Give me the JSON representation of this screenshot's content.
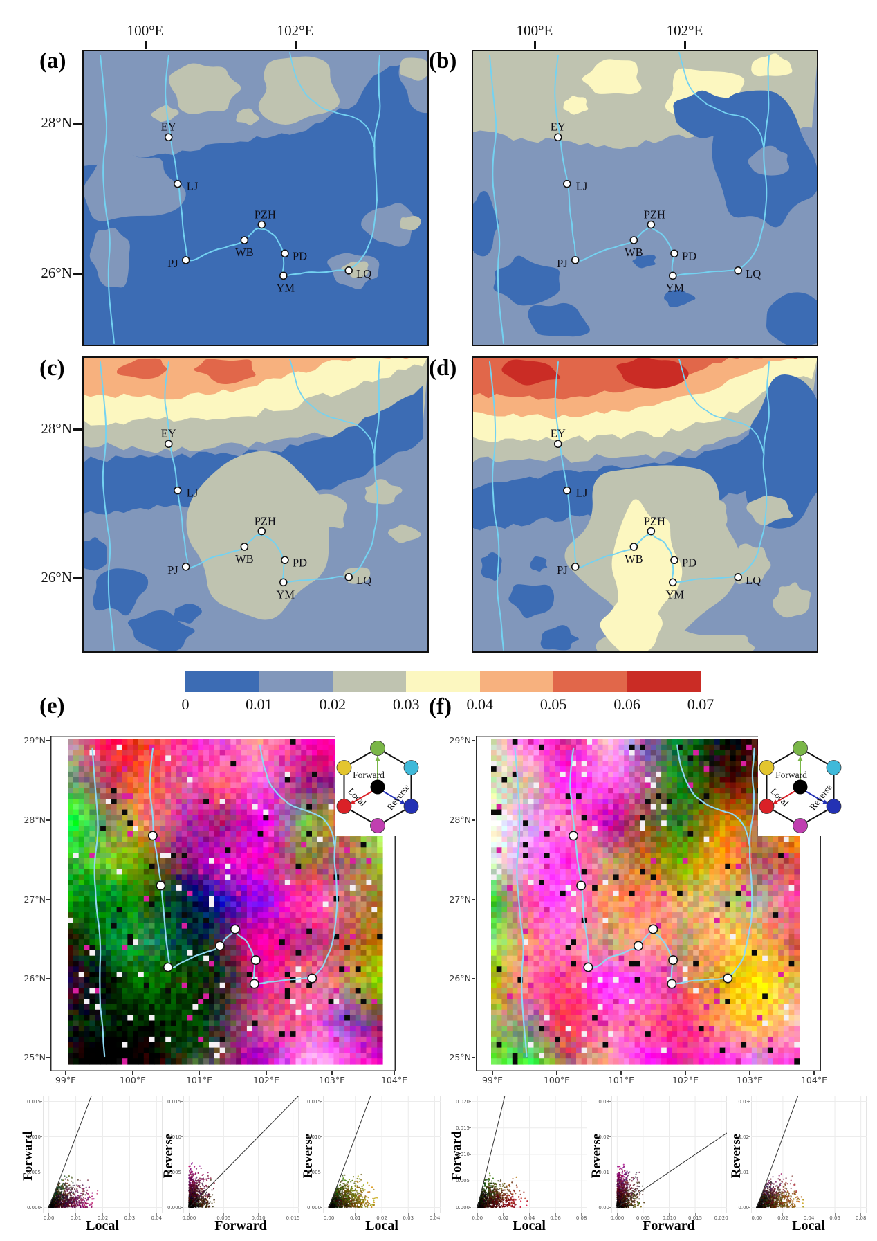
{
  "panels": {
    "a": {
      "label": "(a)",
      "top_ticks": [
        "100°E",
        "102°E"
      ],
      "lat_ticks": [
        "28°N",
        "26°N"
      ]
    },
    "b": {
      "label": "(b)",
      "top_ticks": [
        "100°E",
        "102°E"
      ]
    },
    "c": {
      "label": "(c)",
      "lat_ticks": [
        "28°N",
        "26°N"
      ]
    },
    "d": {
      "label": "(d)"
    },
    "e": {
      "label": "(e)",
      "lon_ticks": [
        "99°E",
        "100°E",
        "101°E",
        "102°E",
        "103°E",
        "104°E"
      ],
      "lat_ticks": [
        "29°N",
        "28°N",
        "27°N",
        "26°N",
        "25°N"
      ]
    },
    "f": {
      "label": "(f)",
      "lon_ticks": [
        "99°E",
        "100°E",
        "101°E",
        "102°E",
        "103°E",
        "104°E"
      ],
      "lat_ticks": [
        "29°N",
        "28°N",
        "27°N",
        "26°N",
        "25°N"
      ]
    }
  },
  "stations": [
    {
      "id": "EY",
      "label": "EY",
      "lon": 100.31,
      "lat": 27.8
    },
    {
      "id": "LJ",
      "label": "LJ",
      "lon": 100.43,
      "lat": 27.17
    },
    {
      "id": "PZH",
      "label": "PZH",
      "lon": 101.55,
      "lat": 26.62
    },
    {
      "id": "WB",
      "label": "WB",
      "lon": 101.32,
      "lat": 26.41
    },
    {
      "id": "PD",
      "label": "PD",
      "lon": 101.86,
      "lat": 26.23
    },
    {
      "id": "PJ",
      "label": "PJ",
      "lon": 100.54,
      "lat": 26.14
    },
    {
      "id": "YM",
      "label": "YM",
      "lon": 101.84,
      "lat": 25.93
    },
    {
      "id": "LQ",
      "label": "LQ",
      "lon": 102.71,
      "lat": 26.0
    }
  ],
  "colorbar": {
    "tick_labels": [
      "0",
      "0.01",
      "0.02",
      "0.03",
      "0.04",
      "0.05",
      "0.06",
      "0.07"
    ],
    "colors": [
      "#3c6cb4",
      "#8197bb",
      "#bfc3b0",
      "#fcf7c0",
      "#f7b17e",
      "#e1674a",
      "#ca2c25"
    ]
  },
  "legend": {
    "forward_label": "Forward",
    "local_label": "Local",
    "reverse_label": "Reverse",
    "vertex_colors": {
      "top": "#7ab648",
      "upper_left": "#e3c52e",
      "upper_right": "#3fb9d9",
      "lower_left": "#da2127",
      "lower_right": "#2331b4",
      "bottom": "#c03fb0",
      "center": "#000000"
    }
  },
  "chart_data": {
    "maps": [
      {
        "id": "a",
        "type": "heatmap",
        "kind": "filled-contour map",
        "lon_range": [
          99.2,
          103.8
        ],
        "lat_range": [
          25.0,
          29.0
        ],
        "x_tick_labels": [
          "100°E",
          "102°E"
        ],
        "y_tick_labels": [
          "28°N",
          "26°N"
        ],
        "value_breaks": [
          0,
          0.01,
          0.02,
          0.03,
          0.04,
          0.05,
          0.06,
          0.07
        ],
        "palette": [
          "#3c6cb4",
          "#8197bb",
          "#bfc3b0",
          "#fcf7c0",
          "#f7b17e",
          "#e1674a",
          "#ca2c25"
        ],
        "pattern": "mostly 0-0.01 (blue); 0.01-0.02 band across north and left; 0.02-0.03 patches along the top",
        "stations": [
          "EY",
          "LJ",
          "PZH",
          "WB",
          "PD",
          "PJ",
          "YM",
          "LQ"
        ]
      },
      {
        "id": "b",
        "type": "heatmap",
        "kind": "filled-contour map",
        "lon_range": [
          99.2,
          103.8
        ],
        "lat_range": [
          25.0,
          29.0
        ],
        "x_tick_labels": [
          "100°E",
          "102°E"
        ],
        "y_tick_labels": [],
        "value_breaks": [
          0,
          0.01,
          0.02,
          0.03,
          0.04,
          0.05,
          0.06,
          0.07
        ],
        "palette": [
          "#3c6cb4",
          "#8197bb",
          "#bfc3b0",
          "#fcf7c0",
          "#f7b17e",
          "#e1674a",
          "#ca2c25"
        ],
        "pattern": "mostly 0.01-0.02; 0.02-0.03 band with 0.03-0.04 spots at top; 0-0.01 blue areas on right and bottom",
        "stations": [
          "EY",
          "LJ",
          "PZH",
          "WB",
          "PD",
          "PJ",
          "YM",
          "LQ"
        ]
      },
      {
        "id": "c",
        "type": "heatmap",
        "kind": "filled-contour map",
        "lon_range": [
          99.2,
          103.8
        ],
        "lat_range": [
          25.0,
          29.0
        ],
        "x_tick_labels": [],
        "y_tick_labels": [
          "28°N",
          "26°N"
        ],
        "value_breaks": [
          0,
          0.01,
          0.02,
          0.03,
          0.04,
          0.05,
          0.06,
          0.07
        ],
        "palette": [
          "#3c6cb4",
          "#8197bb",
          "#bfc3b0",
          "#fcf7c0",
          "#f7b17e",
          "#e1674a",
          "#ca2c25"
        ],
        "pattern": "warm banded maximum (up to 0.05-0.06) along the northern edge; dark-blue 0-0.01 band near 28N; gray 0.02-0.03 core in center",
        "stations": [
          "EY",
          "LJ",
          "PZH",
          "WB",
          "PD",
          "PJ",
          "YM",
          "LQ"
        ]
      },
      {
        "id": "d",
        "type": "heatmap",
        "kind": "filled-contour map",
        "lon_range": [
          99.2,
          103.8
        ],
        "lat_range": [
          25.0,
          29.0
        ],
        "x_tick_labels": [],
        "y_tick_labels": [],
        "value_breaks": [
          0,
          0.01,
          0.02,
          0.03,
          0.04,
          0.05,
          0.06,
          0.07
        ],
        "palette": [
          "#3c6cb4",
          "#8197bb",
          "#bfc3b0",
          "#fcf7c0",
          "#f7b17e",
          "#e1674a",
          "#ca2c25"
        ],
        "pattern": "strong northern maximum with 0.06-0.07 red cores; dark-blue band near EY; central 0.03-0.04 pale-yellow region around WB",
        "stations": [
          "EY",
          "LJ",
          "PZH",
          "WB",
          "PD",
          "PJ",
          "YM",
          "LQ"
        ]
      },
      {
        "id": "e",
        "type": "rgb-composite",
        "kind": "pixel raster map",
        "lon_range": [
          99.0,
          104.0
        ],
        "lat_range": [
          25.0,
          29.0
        ],
        "x_tick_labels": [
          "99°E",
          "100°E",
          "101°E",
          "102°E",
          "103°E",
          "104°E"
        ],
        "y_tick_labels": [
          "29°N",
          "28°N",
          "27°N",
          "26°N",
          "25°N"
        ],
        "legend_axes": {
          "forward": "green",
          "local": "red",
          "reverse": "blue"
        },
        "pattern": "magenta/pink north, green-teal and black (low) southwest-center, yellow east"
      },
      {
        "id": "f",
        "type": "rgb-composite",
        "kind": "pixel raster map",
        "lon_range": [
          99.0,
          104.0
        ],
        "lat_range": [
          25.0,
          29.0
        ],
        "x_tick_labels": [
          "99°E",
          "100°E",
          "101°E",
          "102°E",
          "103°E",
          "104°E"
        ],
        "y_tick_labels": [
          "29°N",
          "28°N",
          "27°N",
          "26°N",
          "25°N"
        ],
        "legend_axes": {
          "forward": "green",
          "local": "red",
          "reverse": "blue"
        },
        "pattern": "bright pink/magenta with dark-green region in the north-center and yellow/orange east half"
      }
    ],
    "scatters": [
      {
        "id": "e1",
        "type": "scatter",
        "xlabel": "Local",
        "ylabel": "Forward",
        "xlim": [
          0,
          0.04
        ],
        "ylim": [
          0,
          0.015
        ],
        "x_ticks": [
          "0.00",
          "0.01",
          "0.02",
          "0.03",
          "0.04"
        ],
        "y_ticks": [
          "0.000",
          "0.005",
          "0.010",
          "0.015"
        ],
        "reference_line": "y = x",
        "points": "dense multicolor cloud below the 1:1 line; black near origin, green left edge, yellow top, magenta band at bottom"
      },
      {
        "id": "e2",
        "type": "scatter",
        "xlabel": "Forward",
        "ylabel": "Reverse",
        "xlim": [
          0,
          0.015
        ],
        "ylim": [
          0,
          0.015
        ],
        "x_ticks": [
          "0.000",
          "0.005",
          "0.010",
          "0.015"
        ],
        "y_ticks": [
          "0.000",
          "0.005",
          "0.010",
          "0.015"
        ],
        "reference_line": "y = x",
        "points": "magenta/purple column at small Forward, pale blue-gray above line, yellow-green below line"
      },
      {
        "id": "e3",
        "type": "scatter",
        "xlabel": "Local",
        "ylabel": "Reverse",
        "xlim": [
          0,
          0.04
        ],
        "ylim": [
          0,
          0.015
        ],
        "x_ticks": [
          "0.00",
          "0.01",
          "0.02",
          "0.03",
          "0.04"
        ],
        "y_ticks": [
          "0.000",
          "0.005",
          "0.010",
          "0.015"
        ],
        "reference_line": "y = x",
        "points": "magenta/pink cloud below the 1:1 line with green-yellow-orange band along the bottom"
      },
      {
        "id": "f1",
        "type": "scatter",
        "xlabel": "Local",
        "ylabel": "Forward",
        "xlim": [
          0,
          0.08
        ],
        "ylim": [
          0,
          0.02
        ],
        "x_ticks": [
          "0.00",
          "0.02",
          "0.04",
          "0.06",
          "0.08"
        ],
        "y_ticks": [
          "0.000",
          "0.005",
          "0.010",
          "0.015",
          "0.020"
        ],
        "reference_line": "y = x",
        "points": "wide pink/magenta bottom band, green-yellow mid, pale top; all below the 1:1 line"
      },
      {
        "id": "f2",
        "type": "scatter",
        "xlabel": "Forward",
        "ylabel": "Reverse",
        "xlim": [
          0,
          0.02
        ],
        "ylim": [
          0,
          0.03
        ],
        "x_ticks": [
          "0.000",
          "0.005",
          "0.010",
          "0.015",
          "0.020"
        ],
        "y_ticks": [
          "0.00",
          "0.01",
          "0.02",
          "0.03"
        ],
        "reference_line": "y = x",
        "points": "magenta column at small Forward, cyan-teal center, yellow-green bottom, pale upper right"
      },
      {
        "id": "f3",
        "type": "scatter",
        "xlabel": "Local",
        "ylabel": "Reverse",
        "xlim": [
          0,
          0.08
        ],
        "ylim": [
          0,
          0.03
        ],
        "x_ticks": [
          "0.00",
          "0.02",
          "0.04",
          "0.06",
          "0.08"
        ],
        "y_ticks": [
          "0.00",
          "0.01",
          "0.02",
          "0.03"
        ],
        "reference_line": "y = x",
        "points": "broad magenta/pink cloud below the 1:1 line, orange band at bottom, blue-violet near line"
      }
    ]
  }
}
